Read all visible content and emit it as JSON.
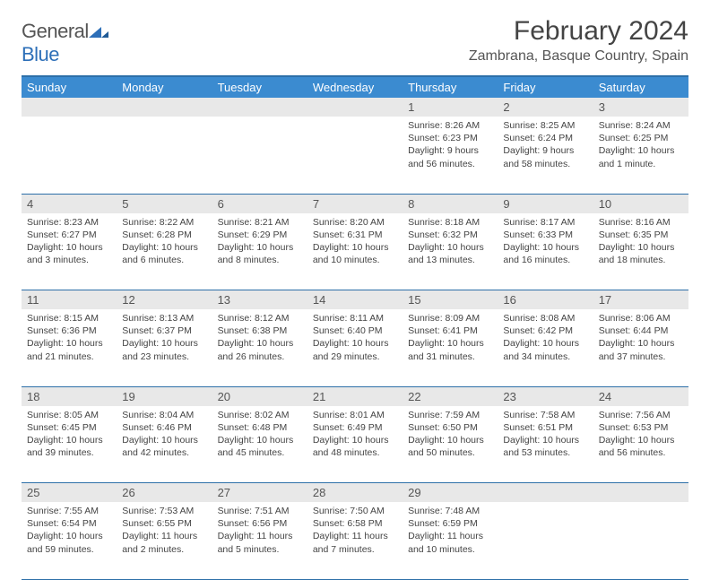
{
  "logo": {
    "word1": "General",
    "word2": "Blue"
  },
  "title": "February 2024",
  "location": "Zambrana, Basque Country, Spain",
  "colors": {
    "header_bg": "#3b8bd0",
    "header_border": "#2d6fa8",
    "daynum_bg": "#e8e8e8",
    "text": "#444444",
    "logo_gray": "#555555",
    "logo_blue": "#2d6fb8"
  },
  "weekdays": [
    "Sunday",
    "Monday",
    "Tuesday",
    "Wednesday",
    "Thursday",
    "Friday",
    "Saturday"
  ],
  "weeks": [
    [
      null,
      null,
      null,
      null,
      {
        "n": "1",
        "sr": "8:26 AM",
        "ss": "6:23 PM",
        "dl": "9 hours and 56 minutes."
      },
      {
        "n": "2",
        "sr": "8:25 AM",
        "ss": "6:24 PM",
        "dl": "9 hours and 58 minutes."
      },
      {
        "n": "3",
        "sr": "8:24 AM",
        "ss": "6:25 PM",
        "dl": "10 hours and 1 minute."
      }
    ],
    [
      {
        "n": "4",
        "sr": "8:23 AM",
        "ss": "6:27 PM",
        "dl": "10 hours and 3 minutes."
      },
      {
        "n": "5",
        "sr": "8:22 AM",
        "ss": "6:28 PM",
        "dl": "10 hours and 6 minutes."
      },
      {
        "n": "6",
        "sr": "8:21 AM",
        "ss": "6:29 PM",
        "dl": "10 hours and 8 minutes."
      },
      {
        "n": "7",
        "sr": "8:20 AM",
        "ss": "6:31 PM",
        "dl": "10 hours and 10 minutes."
      },
      {
        "n": "8",
        "sr": "8:18 AM",
        "ss": "6:32 PM",
        "dl": "10 hours and 13 minutes."
      },
      {
        "n": "9",
        "sr": "8:17 AM",
        "ss": "6:33 PM",
        "dl": "10 hours and 16 minutes."
      },
      {
        "n": "10",
        "sr": "8:16 AM",
        "ss": "6:35 PM",
        "dl": "10 hours and 18 minutes."
      }
    ],
    [
      {
        "n": "11",
        "sr": "8:15 AM",
        "ss": "6:36 PM",
        "dl": "10 hours and 21 minutes."
      },
      {
        "n": "12",
        "sr": "8:13 AM",
        "ss": "6:37 PM",
        "dl": "10 hours and 23 minutes."
      },
      {
        "n": "13",
        "sr": "8:12 AM",
        "ss": "6:38 PM",
        "dl": "10 hours and 26 minutes."
      },
      {
        "n": "14",
        "sr": "8:11 AM",
        "ss": "6:40 PM",
        "dl": "10 hours and 29 minutes."
      },
      {
        "n": "15",
        "sr": "8:09 AM",
        "ss": "6:41 PM",
        "dl": "10 hours and 31 minutes."
      },
      {
        "n": "16",
        "sr": "8:08 AM",
        "ss": "6:42 PM",
        "dl": "10 hours and 34 minutes."
      },
      {
        "n": "17",
        "sr": "8:06 AM",
        "ss": "6:44 PM",
        "dl": "10 hours and 37 minutes."
      }
    ],
    [
      {
        "n": "18",
        "sr": "8:05 AM",
        "ss": "6:45 PM",
        "dl": "10 hours and 39 minutes."
      },
      {
        "n": "19",
        "sr": "8:04 AM",
        "ss": "6:46 PM",
        "dl": "10 hours and 42 minutes."
      },
      {
        "n": "20",
        "sr": "8:02 AM",
        "ss": "6:48 PM",
        "dl": "10 hours and 45 minutes."
      },
      {
        "n": "21",
        "sr": "8:01 AM",
        "ss": "6:49 PM",
        "dl": "10 hours and 48 minutes."
      },
      {
        "n": "22",
        "sr": "7:59 AM",
        "ss": "6:50 PM",
        "dl": "10 hours and 50 minutes."
      },
      {
        "n": "23",
        "sr": "7:58 AM",
        "ss": "6:51 PM",
        "dl": "10 hours and 53 minutes."
      },
      {
        "n": "24",
        "sr": "7:56 AM",
        "ss": "6:53 PM",
        "dl": "10 hours and 56 minutes."
      }
    ],
    [
      {
        "n": "25",
        "sr": "7:55 AM",
        "ss": "6:54 PM",
        "dl": "10 hours and 59 minutes."
      },
      {
        "n": "26",
        "sr": "7:53 AM",
        "ss": "6:55 PM",
        "dl": "11 hours and 2 minutes."
      },
      {
        "n": "27",
        "sr": "7:51 AM",
        "ss": "6:56 PM",
        "dl": "11 hours and 5 minutes."
      },
      {
        "n": "28",
        "sr": "7:50 AM",
        "ss": "6:58 PM",
        "dl": "11 hours and 7 minutes."
      },
      {
        "n": "29",
        "sr": "7:48 AM",
        "ss": "6:59 PM",
        "dl": "11 hours and 10 minutes."
      },
      null,
      null
    ]
  ],
  "labels": {
    "sunrise": "Sunrise: ",
    "sunset": "Sunset: ",
    "daylight": "Daylight: "
  }
}
